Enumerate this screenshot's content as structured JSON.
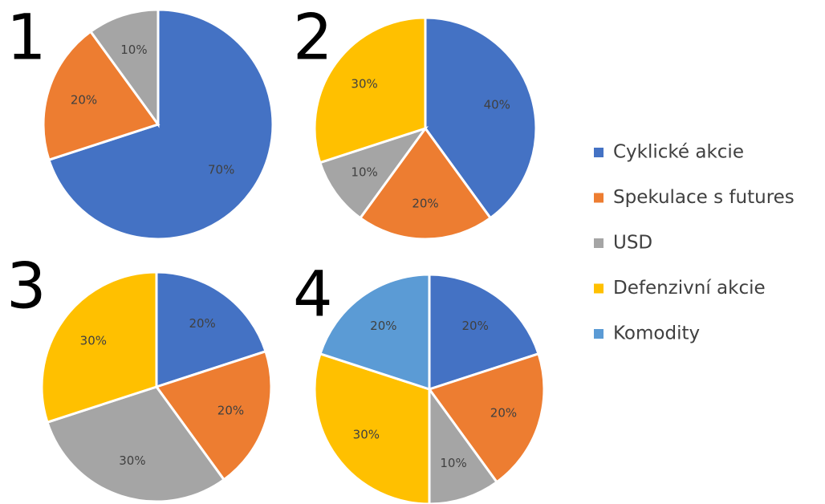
{
  "legend": [
    {
      "name": "Cyklické akcie",
      "color": "#4472c4"
    },
    {
      "name": "Spekulace s futures",
      "color": "#ed7d31"
    },
    {
      "name": "USD",
      "color": "#a5a5a5"
    },
    {
      "name": "Defenzivní akcie",
      "color": "#ffc000"
    },
    {
      "name": "Komodity",
      "color": "#5b9bd5"
    }
  ],
  "chart_data": [
    {
      "type": "pie",
      "title": "1",
      "categories": [
        "Cyklické akcie",
        "Spekulace s futures",
        "USD"
      ],
      "values": [
        70,
        20,
        10
      ],
      "value_labels": [
        "70%",
        "20%",
        "10%"
      ]
    },
    {
      "type": "pie",
      "title": "2",
      "categories": [
        "Cyklické akcie",
        "Spekulace s futures",
        "USD",
        "Defenzivní akcie"
      ],
      "values": [
        40,
        20,
        10,
        30
      ],
      "value_labels": [
        "40%",
        "20%",
        "10%",
        "30%"
      ]
    },
    {
      "type": "pie",
      "title": "3",
      "categories": [
        "Cyklické akcie",
        "Spekulace s futures",
        "USD",
        "Defenzivní akcie"
      ],
      "values": [
        20,
        20,
        30,
        30
      ],
      "value_labels": [
        "20%",
        "20%",
        "30%",
        "30%"
      ]
    },
    {
      "type": "pie",
      "title": "4",
      "categories": [
        "Cyklické akcie",
        "Spekulace s futures",
        "USD",
        "Defenzivní akcie",
        "Komodity"
      ],
      "values": [
        20,
        20,
        10,
        30,
        20
      ],
      "value_labels": [
        "20%",
        "20%",
        "10%",
        "30%",
        "20%"
      ]
    }
  ]
}
